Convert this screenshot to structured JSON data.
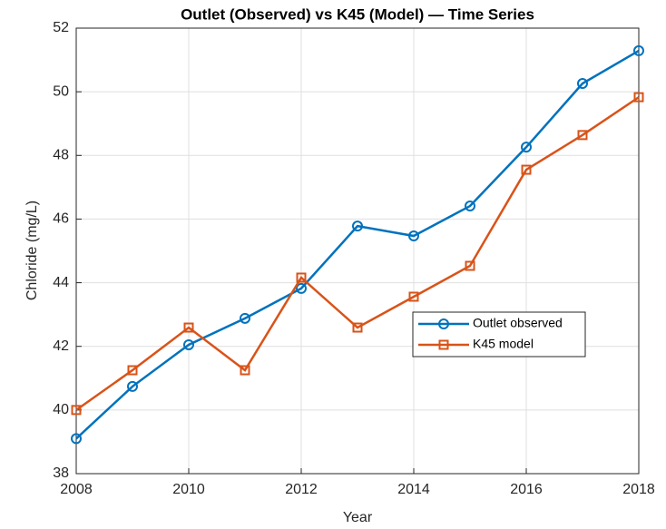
{
  "chart_data": {
    "type": "line",
    "title": "Outlet (Observed) vs K45 (Model) — Time Series",
    "x_label": "Year",
    "y_label": "Chloride (mg/L)",
    "x": [
      2008,
      2009,
      2010,
      2011,
      2012,
      2013,
      2014,
      2015,
      2016,
      2017,
      2018
    ],
    "series": [
      {
        "name": "Outlet observed",
        "color": "#0072BD",
        "marker": "o",
        "values": [
          39.1,
          40.74,
          42.05,
          42.88,
          43.82,
          45.78,
          45.47,
          46.41,
          48.26,
          50.26,
          51.29
        ]
      },
      {
        "name": "K45 model",
        "color": "#D95319",
        "marker": "s",
        "values": [
          40.0,
          41.25,
          42.59,
          41.25,
          44.16,
          42.59,
          43.56,
          44.53,
          47.55,
          48.64,
          49.83
        ]
      }
    ],
    "xlim": [
      2008,
      2018
    ],
    "xticks": [
      2008,
      2010,
      2012,
      2014,
      2016,
      2018
    ],
    "ylim": [
      38,
      52
    ],
    "yticks": [
      38,
      40,
      42,
      44,
      46,
      48,
      50,
      52
    ],
    "grid": true,
    "legend_position": "southeast"
  }
}
